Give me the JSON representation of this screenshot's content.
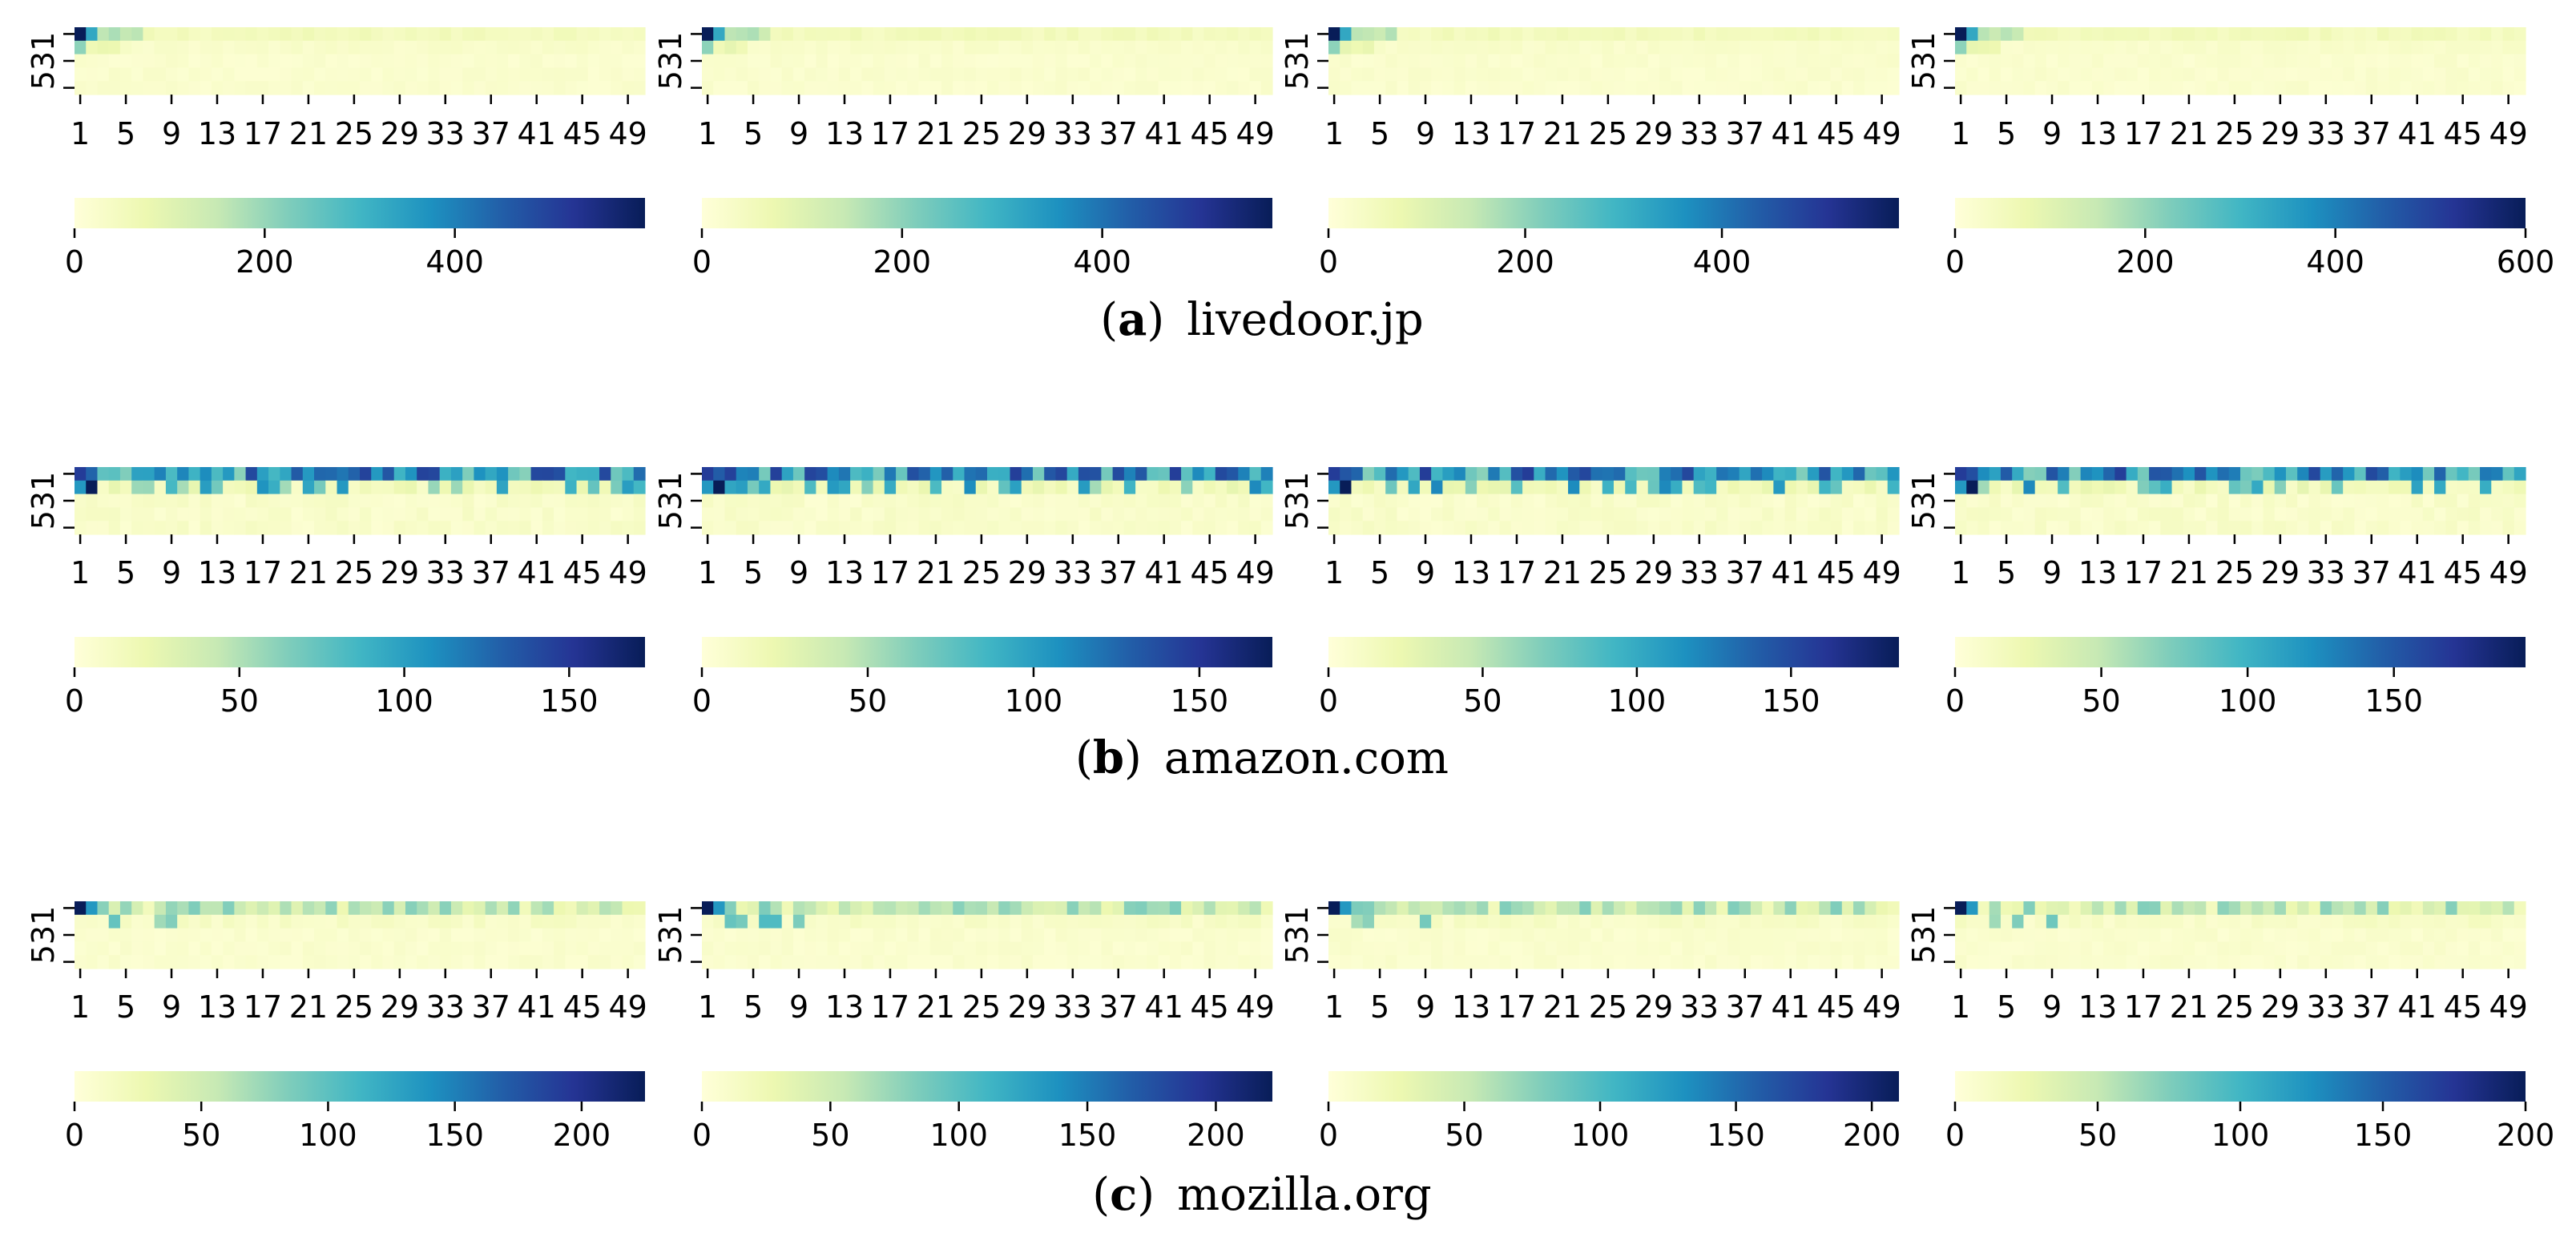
{
  "figure": {
    "rows": [
      {
        "caption_label": "a",
        "caption_text": "livedoor.jp",
        "pattern": "sparse"
      },
      {
        "caption_label": "b",
        "caption_text": "amazon.com",
        "pattern": "dense"
      },
      {
        "caption_label": "c",
        "caption_text": "mozilla.org",
        "pattern": "medium"
      }
    ]
  },
  "colors": {
    "colormap": "YlGnBu",
    "stops": [
      "#ffffd9",
      "#edf8b1",
      "#c7e9b4",
      "#7fcdbb",
      "#41b6c4",
      "#1d91c0",
      "#225ea8",
      "#253494",
      "#081d58"
    ]
  },
  "chart_data": [
    {
      "type": "heatmap",
      "row": 0,
      "col": 0,
      "xlabel": "",
      "ylabel": "",
      "x_tick_labels": [
        "1",
        "5",
        "9",
        "13",
        "17",
        "21",
        "25",
        "29",
        "33",
        "37",
        "41",
        "45",
        "49"
      ],
      "y_tick_labels": [
        "5",
        "3",
        "1"
      ],
      "n_columns": 50,
      "n_rows": 5,
      "colorbar_ticks": [
        0,
        200,
        400
      ],
      "colorbar_tick_labels": [
        "0",
        "200",
        "400"
      ],
      "vmin": 0,
      "vmax": 600
    },
    {
      "type": "heatmap",
      "row": 0,
      "col": 1,
      "xlabel": "",
      "ylabel": "",
      "x_tick_labels": [
        "1",
        "5",
        "9",
        "13",
        "17",
        "21",
        "25",
        "29",
        "33",
        "37",
        "41",
        "45",
        "49"
      ],
      "y_tick_labels": [
        "5",
        "3",
        "1"
      ],
      "n_columns": 50,
      "n_rows": 5,
      "colorbar_ticks": [
        0,
        200,
        400
      ],
      "colorbar_tick_labels": [
        "0",
        "200",
        "400"
      ],
      "vmin": 0,
      "vmax": 570
    },
    {
      "type": "heatmap",
      "row": 0,
      "col": 2,
      "xlabel": "",
      "ylabel": "",
      "x_tick_labels": [
        "1",
        "5",
        "9",
        "13",
        "17",
        "21",
        "25",
        "29",
        "33",
        "37",
        "41",
        "45",
        "49"
      ],
      "y_tick_labels": [
        "5",
        "3",
        "1"
      ],
      "n_columns": 50,
      "n_rows": 5,
      "colorbar_ticks": [
        0,
        200,
        400
      ],
      "colorbar_tick_labels": [
        "0",
        "200",
        "400"
      ],
      "vmin": 0,
      "vmax": 580
    },
    {
      "type": "heatmap",
      "row": 0,
      "col": 3,
      "xlabel": "",
      "ylabel": "",
      "x_tick_labels": [
        "1",
        "5",
        "9",
        "13",
        "17",
        "21",
        "25",
        "29",
        "33",
        "37",
        "41",
        "45",
        "49"
      ],
      "y_tick_labels": [
        "5",
        "3",
        "1"
      ],
      "n_columns": 50,
      "n_rows": 5,
      "colorbar_ticks": [
        0,
        200,
        400,
        600
      ],
      "colorbar_tick_labels": [
        "0",
        "200",
        "400",
        "600"
      ],
      "vmin": 0,
      "vmax": 600
    },
    {
      "type": "heatmap",
      "row": 1,
      "col": 0,
      "xlabel": "",
      "ylabel": "",
      "x_tick_labels": [
        "1",
        "5",
        "9",
        "13",
        "17",
        "21",
        "25",
        "29",
        "33",
        "37",
        "41",
        "45",
        "49"
      ],
      "y_tick_labels": [
        "5",
        "3",
        "1"
      ],
      "n_columns": 50,
      "n_rows": 5,
      "colorbar_ticks": [
        0,
        50,
        100,
        150
      ],
      "colorbar_tick_labels": [
        "0",
        "50",
        "100",
        "150"
      ],
      "vmin": 0,
      "vmax": 173
    },
    {
      "type": "heatmap",
      "row": 1,
      "col": 1,
      "xlabel": "",
      "ylabel": "",
      "x_tick_labels": [
        "1",
        "5",
        "9",
        "13",
        "17",
        "21",
        "25",
        "29",
        "33",
        "37",
        "41",
        "45",
        "49"
      ],
      "y_tick_labels": [
        "5",
        "3",
        "1"
      ],
      "n_columns": 50,
      "n_rows": 5,
      "colorbar_ticks": [
        0,
        50,
        100,
        150
      ],
      "colorbar_tick_labels": [
        "0",
        "50",
        "100",
        "150"
      ],
      "vmin": 0,
      "vmax": 172
    },
    {
      "type": "heatmap",
      "row": 1,
      "col": 2,
      "xlabel": "",
      "ylabel": "",
      "x_tick_labels": [
        "1",
        "5",
        "9",
        "13",
        "17",
        "21",
        "25",
        "29",
        "33",
        "37",
        "41",
        "45",
        "49"
      ],
      "y_tick_labels": [
        "5",
        "3",
        "1"
      ],
      "n_columns": 50,
      "n_rows": 5,
      "colorbar_ticks": [
        0,
        50,
        100,
        150
      ],
      "colorbar_tick_labels": [
        "0",
        "50",
        "100",
        "150"
      ],
      "vmin": 0,
      "vmax": 185
    },
    {
      "type": "heatmap",
      "row": 1,
      "col": 3,
      "xlabel": "",
      "ylabel": "",
      "x_tick_labels": [
        "1",
        "5",
        "9",
        "13",
        "17",
        "21",
        "25",
        "29",
        "33",
        "37",
        "41",
        "45",
        "49"
      ],
      "y_tick_labels": [
        "5",
        "3",
        "1"
      ],
      "n_columns": 50,
      "n_rows": 5,
      "colorbar_ticks": [
        0,
        50,
        100,
        150
      ],
      "colorbar_tick_labels": [
        "0",
        "50",
        "100",
        "150"
      ],
      "vmin": 0,
      "vmax": 195
    },
    {
      "type": "heatmap",
      "row": 2,
      "col": 0,
      "xlabel": "",
      "ylabel": "",
      "x_tick_labels": [
        "1",
        "5",
        "9",
        "13",
        "17",
        "21",
        "25",
        "29",
        "33",
        "37",
        "41",
        "45",
        "49"
      ],
      "y_tick_labels": [
        "5",
        "3",
        "1"
      ],
      "n_columns": 50,
      "n_rows": 5,
      "colorbar_ticks": [
        0,
        50,
        100,
        150,
        200
      ],
      "colorbar_tick_labels": [
        "0",
        "50",
        "100",
        "150",
        "200"
      ],
      "vmin": 0,
      "vmax": 225
    },
    {
      "type": "heatmap",
      "row": 2,
      "col": 1,
      "xlabel": "",
      "ylabel": "",
      "x_tick_labels": [
        "1",
        "5",
        "9",
        "13",
        "17",
        "21",
        "25",
        "29",
        "33",
        "37",
        "41",
        "45",
        "49"
      ],
      "y_tick_labels": [
        "5",
        "3",
        "1"
      ],
      "n_columns": 50,
      "n_rows": 5,
      "colorbar_ticks": [
        0,
        50,
        100,
        150,
        200
      ],
      "colorbar_tick_labels": [
        "0",
        "50",
        "100",
        "150",
        "200"
      ],
      "vmin": 0,
      "vmax": 222
    },
    {
      "type": "heatmap",
      "row": 2,
      "col": 2,
      "xlabel": "",
      "ylabel": "",
      "x_tick_labels": [
        "1",
        "5",
        "9",
        "13",
        "17",
        "21",
        "25",
        "29",
        "33",
        "37",
        "41",
        "45",
        "49"
      ],
      "y_tick_labels": [
        "5",
        "3",
        "1"
      ],
      "n_columns": 50,
      "n_rows": 5,
      "colorbar_ticks": [
        0,
        50,
        100,
        150,
        200
      ],
      "colorbar_tick_labels": [
        "0",
        "50",
        "100",
        "150",
        "200"
      ],
      "vmin": 0,
      "vmax": 210
    },
    {
      "type": "heatmap",
      "row": 2,
      "col": 3,
      "xlabel": "",
      "ylabel": "",
      "x_tick_labels": [
        "1",
        "5",
        "9",
        "13",
        "17",
        "21",
        "25",
        "29",
        "33",
        "37",
        "41",
        "45",
        "49"
      ],
      "y_tick_labels": [
        "5",
        "3",
        "1"
      ],
      "n_columns": 50,
      "n_rows": 5,
      "colorbar_ticks": [
        0,
        50,
        100,
        150,
        200
      ],
      "colorbar_tick_labels": [
        "0",
        "50",
        "100",
        "150",
        "200"
      ],
      "vmin": 0,
      "vmax": 200
    }
  ]
}
